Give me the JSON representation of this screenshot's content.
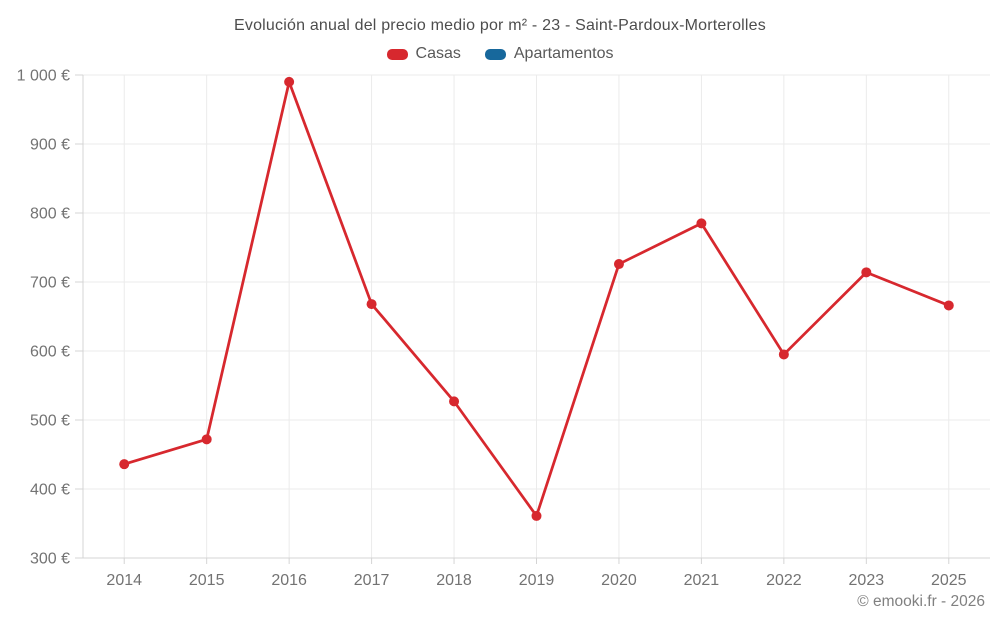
{
  "title": "Evolución anual del precio medio por m² - 23 - Saint-Pardoux-Morterolles",
  "legend": [
    {
      "label": "Casas",
      "color": "#d7282e",
      "icon": "legend-swatch"
    },
    {
      "label": "Apartamentos",
      "color": "#17689c",
      "icon": "legend-swatch"
    }
  ],
  "footer": "© emooki.fr - 2026",
  "colors": {
    "grid": "#ebebeb",
    "axis": "#d4d4d4",
    "tick_label": "#737373",
    "title_text": "#4d4d4d",
    "legend_text": "#595959",
    "footer_text": "#808080",
    "background": "#ffffff"
  },
  "chart_data": {
    "type": "line",
    "title": "Evolución anual del precio medio por m² - 23 - Saint-Pardoux-Morterolles",
    "categories": [
      "2014",
      "2015",
      "2016",
      "2017",
      "2018",
      "2019",
      "2020",
      "2021",
      "2022",
      "2023",
      "2025"
    ],
    "series": [
      {
        "name": "Casas",
        "color": "#d7282e",
        "values": [
          436,
          472,
          990,
          668,
          527,
          361,
          726,
          785,
          595,
          714,
          666
        ]
      },
      {
        "name": "Apartamentos",
        "color": "#17689c",
        "values": []
      }
    ],
    "xlabel": "",
    "ylabel": "",
    "ylim": [
      300,
      1000
    ],
    "yticks": [
      300,
      400,
      500,
      600,
      700,
      800,
      900,
      1000
    ],
    "ytick_labels": [
      "300 €",
      "400 €",
      "500 €",
      "600 €",
      "700 €",
      "800 €",
      "900 €",
      "1 000 €"
    ],
    "currency_suffix": "€",
    "grid": true,
    "legend_position": "top"
  }
}
